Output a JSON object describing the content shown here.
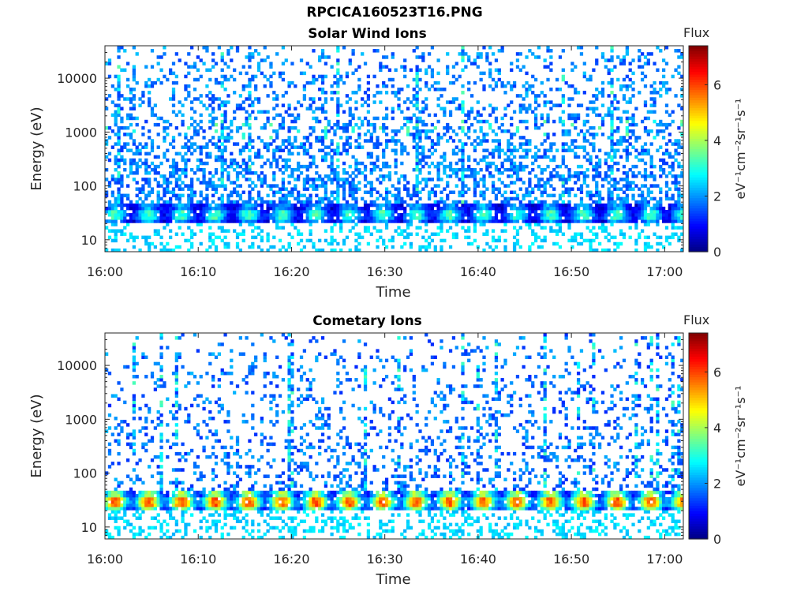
{
  "figure": {
    "title": "RPCICA160523T16.PNG"
  },
  "chart_data": [
    {
      "type": "heatmap",
      "title": "Solar Wind Ions",
      "xlabel": "Time",
      "ylabel": "Energy (eV)",
      "x_ticks": [
        "16:00",
        "16:10",
        "16:20",
        "16:30",
        "16:40",
        "16:50",
        "17:00"
      ],
      "x_range": [
        "16:00",
        "17:02"
      ],
      "y_scale": "log",
      "y_ticks": [
        10,
        100,
        1000,
        10000
      ],
      "y_range": [
        6,
        40000
      ],
      "colorbar": {
        "title": "Flux",
        "label": "eV⁻¹cm⁻²sr⁻¹s⁻¹",
        "range": [
          0,
          7.4
        ],
        "ticks": [
          0,
          2,
          4,
          6
        ],
        "colormap": "jet"
      },
      "features": {
        "low_energy_band_eV": [
          20,
          45
        ],
        "low_energy_band_level": 3.2,
        "high_energy_noise_level": 1.3
      }
    },
    {
      "type": "heatmap",
      "title": "Cometary Ions",
      "xlabel": "Time",
      "ylabel": "Energy (eV)",
      "x_ticks": [
        "16:00",
        "16:10",
        "16:20",
        "16:30",
        "16:40",
        "16:50",
        "17:00"
      ],
      "x_range": [
        "16:00",
        "17:02"
      ],
      "y_scale": "log",
      "y_ticks": [
        10,
        100,
        1000,
        10000
      ],
      "y_range": [
        6,
        40000
      ],
      "colorbar": {
        "title": "Flux",
        "label": "eV⁻¹cm⁻²sr⁻¹s⁻¹",
        "range": [
          0,
          7.4
        ],
        "ticks": [
          0,
          2,
          4,
          6
        ],
        "colormap": "jet"
      },
      "features": {
        "low_energy_band_eV": [
          20,
          45
        ],
        "low_energy_band_level": 5.8,
        "high_energy_noise_level": 1.2
      }
    }
  ]
}
